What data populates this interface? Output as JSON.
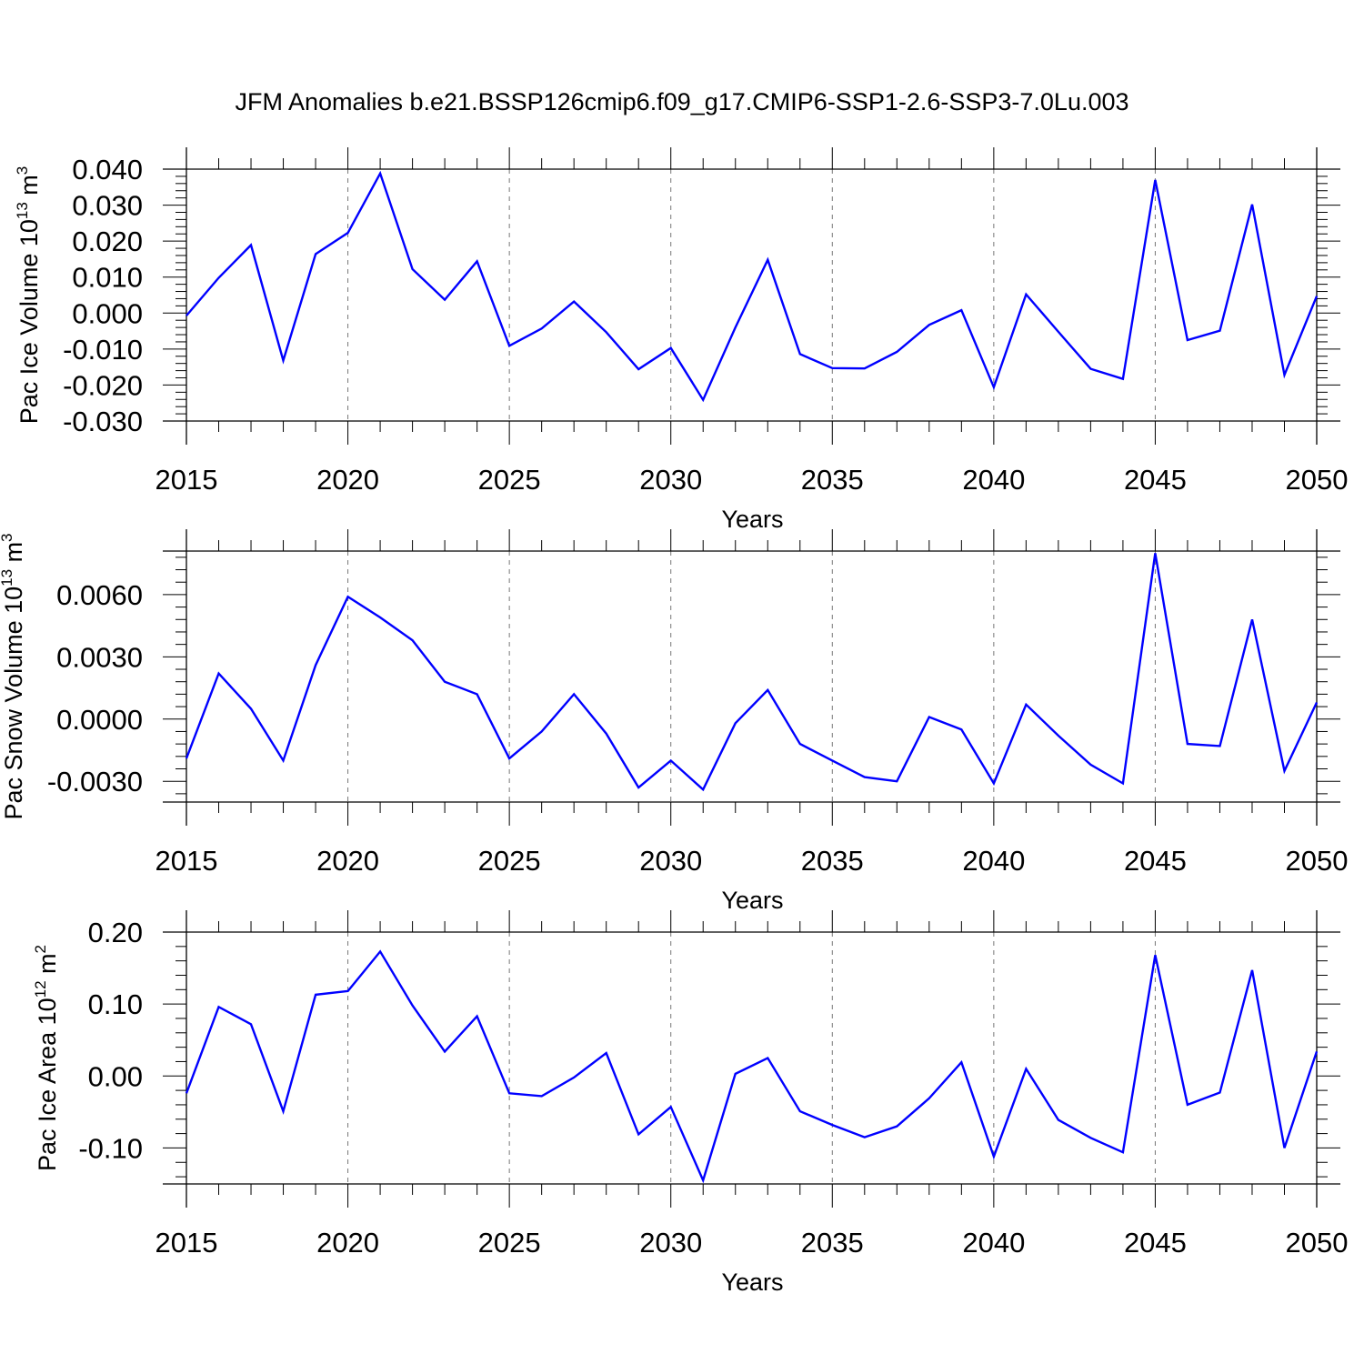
{
  "title": "JFM Anomalies b.e21.BSSP126cmip6.f09_g17.CMIP6-SSP1-2.6-SSP3-7.0Lu.003",
  "colors": {
    "line": "#0000ff",
    "axis": "#000000",
    "grid": "#777777"
  },
  "chart_data": [
    {
      "type": "line",
      "xlabel": "Years",
      "ylabel": {
        "text": "Pac Ice Volume 10",
        "exp": "13",
        "unit": "m",
        "unit_exp": "3"
      },
      "xlim": [
        2015,
        2050
      ],
      "ylim": [
        -0.03,
        0.04
      ],
      "xticks": [
        2015,
        2020,
        2025,
        2030,
        2035,
        2040,
        2045,
        2050
      ],
      "yticks": [
        "0.040",
        "0.030",
        "0.020",
        "0.010",
        "0.000",
        "-0.010",
        "-0.020",
        "-0.030"
      ],
      "ytick_values": [
        0.04,
        0.03,
        0.02,
        0.01,
        0.0,
        -0.01,
        -0.02,
        -0.03
      ],
      "grid": "dashed vertical lines at 2020, 2025, 2030, 2035, 2040, 2045",
      "x": [
        2015,
        2016,
        2017,
        2018,
        2019,
        2020,
        2021,
        2022,
        2023,
        2024,
        2025,
        2026,
        2027,
        2028,
        2029,
        2030,
        2031,
        2032,
        2033,
        2034,
        2035,
        2036,
        2037,
        2038,
        2039,
        2040,
        2041,
        2042,
        2043,
        2044,
        2045,
        2046,
        2047,
        2048,
        2049,
        2050
      ],
      "values": [
        -0.0007,
        0.0098,
        0.0189,
        -0.0132,
        0.0164,
        0.0223,
        0.0388,
        0.0122,
        0.0037,
        0.0144,
        -0.0091,
        -0.0043,
        0.0032,
        -0.0053,
        -0.0156,
        -0.0097,
        -0.0241,
        -0.004,
        0.0148,
        -0.0114,
        -0.0153,
        -0.0154,
        -0.0108,
        -0.0033,
        0.0008,
        -0.0206,
        0.0052,
        -0.0052,
        -0.0155,
        -0.0183,
        0.037,
        -0.0075,
        -0.0049,
        0.0302,
        -0.0172,
        0.0047
      ]
    },
    {
      "type": "line",
      "xlabel": "Years",
      "ylabel": {
        "text": "Pac Snow Volume 10",
        "exp": "13",
        "unit": "m",
        "unit_exp": "3"
      },
      "xlim": [
        2015,
        2050
      ],
      "ylim": [
        -0.004,
        0.0081
      ],
      "xticks": [
        2015,
        2020,
        2025,
        2030,
        2035,
        2040,
        2045,
        2050
      ],
      "yticks": [
        "0.0060",
        "0.0030",
        "0.0000",
        "-0.0030"
      ],
      "ytick_values": [
        0.006,
        0.003,
        0.0,
        -0.003
      ],
      "grid": "dashed vertical lines at 2020, 2025, 2030, 2035, 2040, 2045",
      "x": [
        2015,
        2016,
        2017,
        2018,
        2019,
        2020,
        2021,
        2022,
        2023,
        2024,
        2025,
        2026,
        2027,
        2028,
        2029,
        2030,
        2031,
        2032,
        2033,
        2034,
        2035,
        2036,
        2037,
        2038,
        2039,
        2040,
        2041,
        2042,
        2043,
        2044,
        2045,
        2046,
        2047,
        2048,
        2049,
        2050
      ],
      "values": [
        -0.0019,
        0.0022,
        0.0005,
        -0.002,
        0.0026,
        0.0059,
        0.0049,
        0.0038,
        0.0018,
        0.0012,
        -0.0019,
        -0.0006,
        0.0012,
        -0.0007,
        -0.0033,
        -0.002,
        -0.0034,
        -0.0002,
        0.0014,
        -0.0012,
        -0.002,
        -0.0028,
        -0.003,
        0.0001,
        -0.0005,
        -0.0031,
        0.0007,
        -0.0008,
        -0.0022,
        -0.0031,
        0.008,
        -0.0012,
        -0.0013,
        0.0048,
        -0.0025,
        0.0008
      ]
    },
    {
      "type": "line",
      "xlabel": "Years",
      "ylabel": {
        "text": "Pac Ice Area 10",
        "exp": "12",
        "unit": "m",
        "unit_exp": "2"
      },
      "xlim": [
        2015,
        2050
      ],
      "ylim": [
        -0.15,
        0.2
      ],
      "xticks": [
        2015,
        2020,
        2025,
        2030,
        2035,
        2040,
        2045,
        2050
      ],
      "yticks": [
        "0.20",
        "0.10",
        "0.00",
        "-0.10"
      ],
      "ytick_values": [
        0.2,
        0.1,
        0.0,
        -0.1
      ],
      "grid": "dashed vertical lines at 2020, 2025, 2030, 2035, 2040, 2045",
      "x": [
        2015,
        2016,
        2017,
        2018,
        2019,
        2020,
        2021,
        2022,
        2023,
        2024,
        2025,
        2026,
        2027,
        2028,
        2029,
        2030,
        2031,
        2032,
        2033,
        2034,
        2035,
        2036,
        2037,
        2038,
        2039,
        2040,
        2041,
        2042,
        2043,
        2044,
        2045,
        2046,
        2047,
        2048,
        2049,
        2050
      ],
      "values": [
        -0.024,
        0.096,
        0.072,
        -0.049,
        0.113,
        0.118,
        0.173,
        0.098,
        0.034,
        0.083,
        -0.024,
        -0.028,
        -0.002,
        0.032,
        -0.081,
        -0.043,
        -0.145,
        0.003,
        0.025,
        -0.049,
        -0.068,
        -0.085,
        -0.07,
        -0.031,
        0.019,
        -0.112,
        0.01,
        -0.061,
        -0.086,
        -0.106,
        0.168,
        -0.04,
        -0.023,
        0.147,
        -0.1,
        0.034
      ]
    }
  ]
}
